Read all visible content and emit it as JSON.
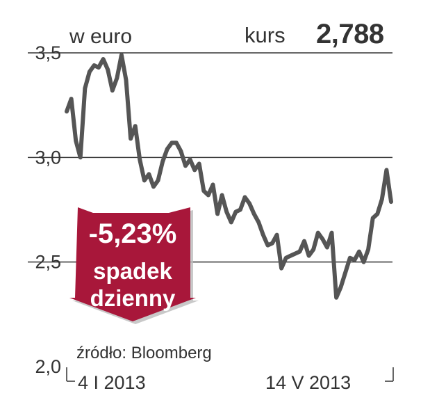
{
  "header": {
    "unit": "w euro",
    "kurs_label": "kurs",
    "kurs_value": "2,788"
  },
  "badge": {
    "change": "-5,23%",
    "line1": "spadek",
    "line2": "dzienny",
    "color": "#a8173a"
  },
  "source": "źródło: Bloomberg",
  "colors": {
    "line": "#555555",
    "grid": "#333333",
    "text": "#333333"
  },
  "chart_data": {
    "type": "line",
    "title": "",
    "xlabel": "",
    "ylabel": "w euro",
    "ylim": [
      2.0,
      3.5
    ],
    "yticks": [
      "3,5",
      "3,0",
      "2,5",
      "2,0"
    ],
    "ytick_values": [
      3.5,
      3.0,
      2.5,
      2.0
    ],
    "xtick_labels": [
      "4 I 2013",
      "14 V 2013"
    ],
    "grid": true,
    "series": [
      {
        "values": [
          3.22,
          3.28,
          3.08,
          3.0,
          3.33,
          3.41,
          3.44,
          3.43,
          3.47,
          3.42,
          3.32,
          3.38,
          3.49,
          3.37,
          3.09,
          3.15,
          2.99,
          2.89,
          2.92,
          2.86,
          2.89,
          2.98,
          3.04,
          3.07,
          3.07,
          3.03,
          2.96,
          2.99,
          2.94,
          2.97,
          2.84,
          2.82,
          2.87,
          2.73,
          2.82,
          2.74,
          2.69,
          2.74,
          2.75,
          2.81,
          2.78,
          2.73,
          2.69,
          2.63,
          2.58,
          2.59,
          2.63,
          2.47,
          2.52,
          2.53,
          2.54,
          2.55,
          2.6,
          2.53,
          2.56,
          2.64,
          2.61,
          2.57,
          2.64,
          2.33,
          2.38,
          2.45,
          2.52,
          2.51,
          2.55,
          2.5,
          2.56,
          2.71,
          2.73,
          2.8,
          2.94,
          2.788
        ]
      }
    ]
  }
}
